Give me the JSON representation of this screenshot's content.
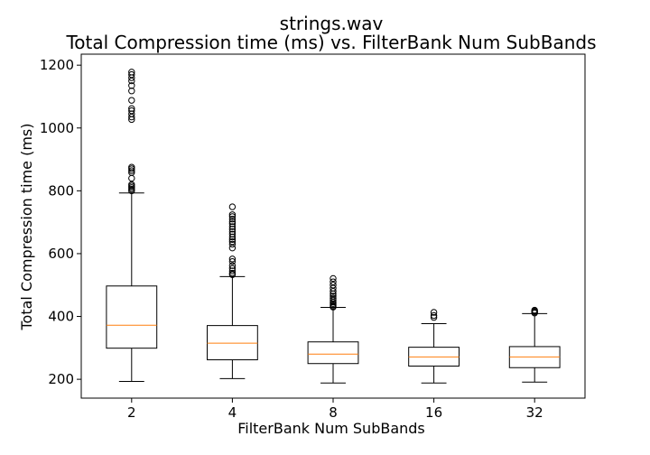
{
  "chart_data": {
    "type": "box",
    "title": "strings.wav",
    "subtitle": "Total Compression time (ms) vs. FilterBank Num SubBands",
    "xlabel": "FilterBank Num SubBands",
    "ylabel": "Total Compression time (ms)",
    "categories": [
      "2",
      "4",
      "8",
      "16",
      "32"
    ],
    "ylim": [
      140,
      1235
    ],
    "yticks": [
      200,
      400,
      600,
      800,
      1000,
      1200
    ],
    "grid": false,
    "legend": "none",
    "colors": {
      "box": "#000000",
      "median": "#ff7f0e",
      "flier": "#000000"
    },
    "boxes": [
      {
        "category": "2",
        "whisker_low": 193,
        "q1": 299,
        "median": 372,
        "q3": 497,
        "whisker_high": 793,
        "outliers": [
          800,
          805,
          810,
          815,
          820,
          840,
          858,
          864,
          870,
          875,
          1027,
          1035,
          1045,
          1055,
          1062,
          1088,
          1118,
          1135,
          1150,
          1160,
          1170,
          1178
        ]
      },
      {
        "category": "4",
        "whisker_low": 202,
        "q1": 262,
        "median": 315,
        "q3": 371,
        "whisker_high": 527,
        "outliers": [
          533,
          538,
          545,
          553,
          562,
          575,
          583,
          618,
          630,
          638,
          645,
          653,
          662,
          670,
          678,
          686,
          695,
          702,
          710,
          718,
          724,
          749
        ]
      },
      {
        "category": "8",
        "whisker_low": 188,
        "q1": 250,
        "median": 280,
        "q3": 319,
        "whisker_high": 429,
        "outliers": [
          430,
          433,
          437,
          441,
          446,
          452,
          458,
          465,
          472,
          480,
          490,
          500,
          510,
          521
        ]
      },
      {
        "category": "16",
        "whisker_low": 188,
        "q1": 242,
        "median": 271,
        "q3": 302,
        "whisker_high": 377,
        "outliers": [
          397,
          403,
          413
        ]
      },
      {
        "category": "32",
        "whisker_low": 191,
        "q1": 237,
        "median": 271,
        "q3": 304,
        "whisker_high": 409,
        "outliers": [
          411,
          414,
          417,
          420
        ]
      }
    ]
  }
}
